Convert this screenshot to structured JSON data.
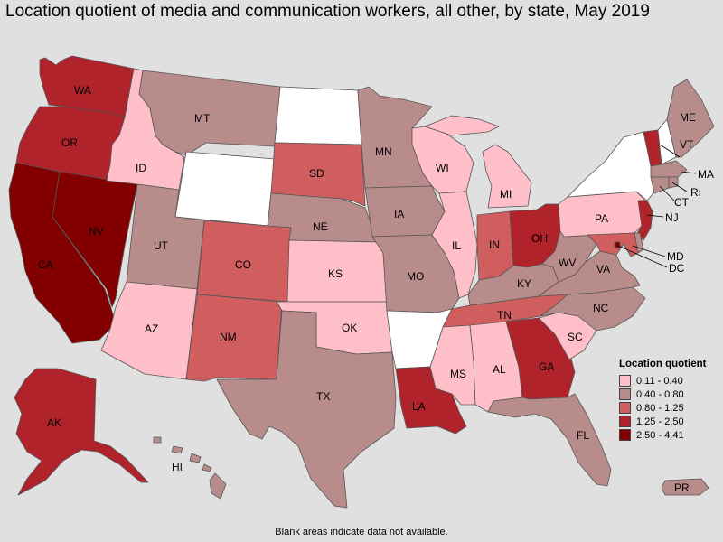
{
  "title": "Location quotient of media and communication workers, all other, by state, May 2019",
  "footnote": "Blank areas indicate data not available.",
  "colors": {
    "background": "#e0e0e0",
    "na": "#ffffff",
    "q1": "#ffbfc8",
    "q2": "#b98c8c",
    "q3": "#d05e5e",
    "q4": "#b0232b",
    "q5": "#820000"
  },
  "legend": {
    "title": "Location quotient",
    "items": [
      {
        "label": "0.11 - 0.40",
        "class": "q1"
      },
      {
        "label": "0.40 - 0.80",
        "class": "q2"
      },
      {
        "label": "0.80 - 1.25",
        "class": "q3"
      },
      {
        "label": "1.25 - 2.50",
        "class": "q4"
      },
      {
        "label": "2.50 - 4.41",
        "class": "q5"
      }
    ]
  },
  "states": {
    "WA": {
      "class": "q4"
    },
    "OR": {
      "class": "q4"
    },
    "CA": {
      "class": "q5"
    },
    "NV": {
      "class": "q5"
    },
    "ID": {
      "class": "q1"
    },
    "MT": {
      "class": "q2"
    },
    "WY": {
      "class": "na"
    },
    "UT": {
      "class": "q2"
    },
    "AZ": {
      "class": "q1"
    },
    "CO": {
      "class": "q3"
    },
    "NM": {
      "class": "q3"
    },
    "ND": {
      "class": "na"
    },
    "SD": {
      "class": "q3"
    },
    "NE": {
      "class": "q2"
    },
    "KS": {
      "class": "q1"
    },
    "OK": {
      "class": "q1"
    },
    "TX": {
      "class": "q2"
    },
    "MN": {
      "class": "q2"
    },
    "IA": {
      "class": "q2"
    },
    "MO": {
      "class": "q2"
    },
    "AR": {
      "class": "na"
    },
    "LA": {
      "class": "q4"
    },
    "WI": {
      "class": "q1"
    },
    "IL": {
      "class": "q1"
    },
    "MI": {
      "class": "q1"
    },
    "IN": {
      "class": "q3"
    },
    "OH": {
      "class": "q4"
    },
    "KY": {
      "class": "q2"
    },
    "TN": {
      "class": "q3"
    },
    "MS": {
      "class": "q1"
    },
    "AL": {
      "class": "q1"
    },
    "GA": {
      "class": "q4"
    },
    "FL": {
      "class": "q2"
    },
    "SC": {
      "class": "q1"
    },
    "NC": {
      "class": "q2"
    },
    "VA": {
      "class": "q2"
    },
    "WV": {
      "class": "q2"
    },
    "PA": {
      "class": "q1"
    },
    "NY": {
      "class": "na"
    },
    "VT": {
      "class": "q4"
    },
    "NH": {
      "class": "na"
    },
    "ME": {
      "class": "q2"
    },
    "MA": {
      "class": "q2"
    },
    "CT": {
      "class": "q2"
    },
    "RI": {
      "class": "q2"
    },
    "NJ": {
      "class": "q4"
    },
    "DE": {
      "class": "q2"
    },
    "MD": {
      "class": "q3"
    },
    "DC": {
      "class": "q5"
    },
    "AK": {
      "class": "q4"
    },
    "HI": {
      "class": "q2"
    },
    "PR": {
      "class": "q2"
    }
  },
  "labels": {
    "WA": "WA",
    "OR": "OR",
    "CA": "CA",
    "NV": "NV",
    "ID": "ID",
    "MT": "MT",
    "UT": "UT",
    "AZ": "AZ",
    "CO": "CO",
    "NM": "NM",
    "SD": "SD",
    "NE": "NE",
    "KS": "KS",
    "OK": "OK",
    "TX": "TX",
    "MN": "MN",
    "IA": "IA",
    "MO": "MO",
    "LA": "LA",
    "WI": "WI",
    "IL": "IL",
    "MI": "MI",
    "IN": "IN",
    "OH": "OH",
    "KY": "KY",
    "TN": "TN",
    "MS": "MS",
    "AL": "AL",
    "GA": "GA",
    "FL": "FL",
    "SC": "SC",
    "NC": "NC",
    "VA": "VA",
    "WV": "WV",
    "PA": "PA",
    "VT": "VT",
    "ME": "ME",
    "MA": "MA",
    "CT": "CT",
    "RI": "RI",
    "NJ": "NJ",
    "MD": "MD",
    "DC": "DC",
    "AK": "AK",
    "HI": "HI",
    "PR": "PR"
  }
}
